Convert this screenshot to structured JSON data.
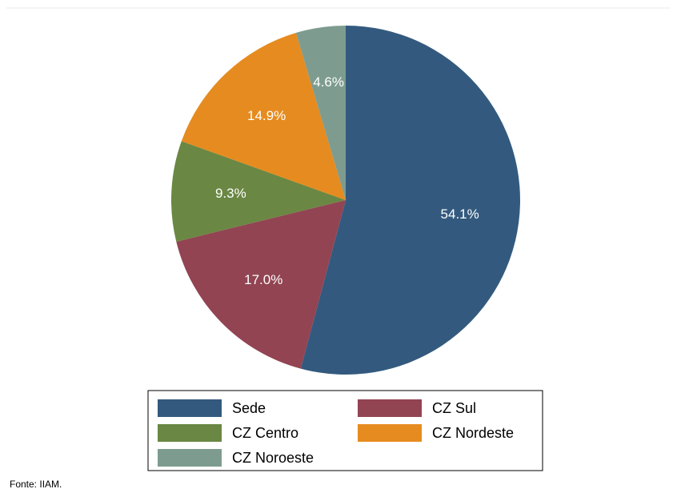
{
  "chart_data": {
    "type": "pie",
    "categories": [
      "Sede",
      "CZ Sul",
      "CZ Centro",
      "CZ Nordeste",
      "CZ Noroeste"
    ],
    "values": [
      54.1,
      17.0,
      9.3,
      14.9,
      4.6
    ],
    "value_labels": [
      "54.1%",
      "17.0%",
      "9.3%",
      "14.9%",
      "4.6%"
    ],
    "colors": [
      "#335a7e",
      "#924452",
      "#6a8743",
      "#e68b1f",
      "#7d9c8f"
    ],
    "note": "Fonte:  IIAM."
  }
}
